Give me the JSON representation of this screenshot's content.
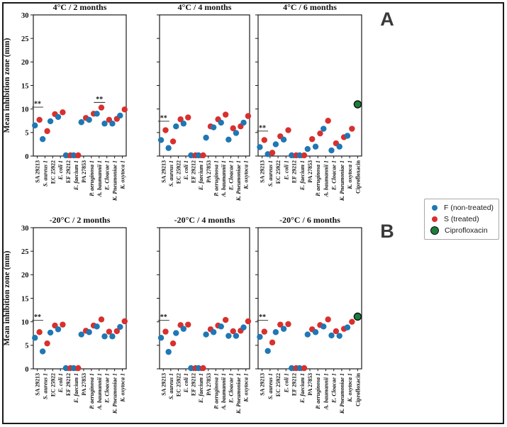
{
  "figure": {
    "panel_label_a": "A",
    "panel_label_b": "B",
    "significance_marker": "**"
  },
  "legend": {
    "items": [
      {
        "label": "F (non-treated)",
        "color": "#1f77b4",
        "edge": "none"
      },
      {
        "label": "S (treated)",
        "color": "#d8302d",
        "edge": "none"
      },
      {
        "label": "Ciprofloxacin",
        "color": "#1b7e3c",
        "edge": "#111111"
      }
    ]
  },
  "chart_data": {
    "type": "scatter",
    "ylabel": "Mean inhibition zone (mm)",
    "ylim": [
      0,
      30
    ],
    "yticks": [
      0,
      5,
      10,
      15,
      20,
      25,
      30
    ],
    "grid": false,
    "legend_position": "center-right",
    "categories": [
      "SA 29213",
      "S. aureus 1",
      "EC 25922",
      "E. coli 1",
      "EF 29212",
      "E. faecium 1",
      "PA 27853",
      "P. aeruginosa 1",
      "A. baumannii 1",
      "E. Cloacae 1",
      "K. Pneumoniae 1",
      "K. oxytoca 1"
    ],
    "ciprofloxacin_category": "Ciprofloxacin",
    "panels": [
      {
        "title": "4°C / 2 months",
        "series": [
          {
            "name": "F (non-treated)",
            "values": [
              6.5,
              3.6,
              7.4,
              8.3,
              0.15,
              0.15,
              7.2,
              7.7,
              9.0,
              6.9,
              6.9,
              8.6
            ]
          },
          {
            "name": "S (treated)",
            "values": [
              7.7,
              5.3,
              8.9,
              9.3,
              0.15,
              0.15,
              8.1,
              9.0,
              10.3,
              7.7,
              7.9,
              9.9
            ]
          }
        ],
        "ciprofloxacin": null,
        "significance": [
          {
            "strain": 0,
            "y": 10.4
          },
          {
            "strain": 8,
            "y": 11.4
          }
        ]
      },
      {
        "title": "4°C / 4 months",
        "series": [
          {
            "name": "F (non-treated)",
            "values": [
              3.4,
              1.7,
              6.3,
              6.9,
              0.15,
              0.15,
              3.9,
              6.1,
              7.1,
              3.5,
              4.9,
              7.1
            ]
          },
          {
            "name": "S (treated)",
            "values": [
              5.5,
              3.1,
              7.8,
              8.2,
              0.15,
              0.15,
              6.3,
              7.8,
              8.8,
              5.9,
              6.3,
              8.5
            ]
          }
        ],
        "ciprofloxacin": null,
        "significance": [
          {
            "strain": 0,
            "y": 7.4
          }
        ]
      },
      {
        "title": "4°C / 6 months",
        "series": [
          {
            "name": "F (non-treated)",
            "values": [
              1.9,
              0.4,
              2.5,
              3.5,
              0.15,
              0.15,
              1.5,
              2.0,
              5.8,
              1.2,
              2.0,
              4.3
            ]
          },
          {
            "name": "S (treated)",
            "values": [
              3.4,
              0.7,
              4.2,
              5.5,
              0.15,
              0.15,
              3.6,
              4.8,
              7.5,
              2.7,
              4.0,
              5.8
            ]
          }
        ],
        "ciprofloxacin": 11.0,
        "significance": [
          {
            "strain": 0,
            "y": 5.3
          }
        ]
      },
      {
        "title": "-20°C / 2 months",
        "series": [
          {
            "name": "F (non-treated)",
            "values": [
              6.6,
              3.7,
              7.7,
              8.4,
              0.15,
              0.15,
              7.3,
              7.8,
              9.0,
              6.9,
              6.9,
              8.9
            ]
          },
          {
            "name": "S (treated)",
            "values": [
              7.8,
              5.4,
              9.2,
              9.4,
              0.15,
              0.15,
              8.1,
              9.2,
              10.5,
              7.9,
              8.0,
              10.1
            ]
          }
        ],
        "ciprofloxacin": null,
        "significance": [
          {
            "strain": 0,
            "y": 10.3
          }
        ]
      },
      {
        "title": "-20°C / 4 months",
        "series": [
          {
            "name": "F (non-treated)",
            "values": [
              6.6,
              3.6,
              7.6,
              8.5,
              0.15,
              0.15,
              7.3,
              7.8,
              9.0,
              7.0,
              7.0,
              8.8
            ]
          },
          {
            "name": "S (treated)",
            "values": [
              7.9,
              5.4,
              9.3,
              9.4,
              0.15,
              0.15,
              8.4,
              9.2,
              10.4,
              8.0,
              8.1,
              10.1
            ]
          }
        ],
        "ciprofloxacin": null,
        "significance": [
          {
            "strain": 0,
            "y": 10.3
          }
        ]
      },
      {
        "title": "-20°C / 6 months",
        "series": [
          {
            "name": "F (non-treated)",
            "values": [
              6.8,
              3.8,
              7.8,
              8.5,
              0.15,
              0.15,
              7.3,
              7.8,
              9.0,
              7.1,
              7.0,
              8.8
            ]
          },
          {
            "name": "S (treated)",
            "values": [
              7.9,
              5.6,
              9.4,
              9.5,
              0.15,
              0.15,
              8.4,
              9.3,
              10.5,
              8.0,
              8.5,
              10.0
            ]
          }
        ],
        "ciprofloxacin": 11.1,
        "significance": [
          {
            "strain": 0,
            "y": 10.3
          }
        ]
      }
    ]
  }
}
